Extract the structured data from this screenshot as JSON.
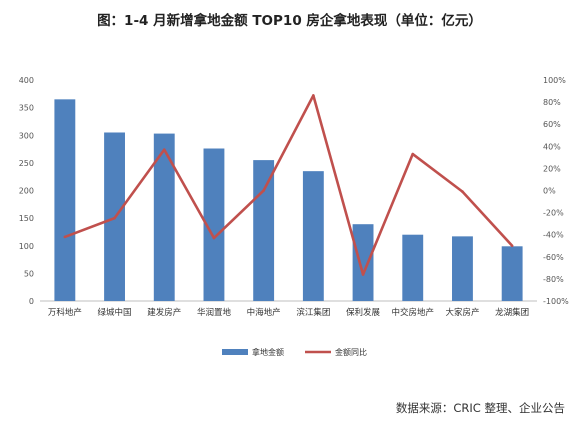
{
  "source_note": "数据来源：CRIC 整理、企业公告",
  "chart_data": {
    "type": "bar",
    "title": "图：1-4 月新增拿地金额 TOP10 房企拿地表现（单位：亿元）",
    "categories": [
      "万科地产",
      "绿城中国",
      "建发房产",
      "华润置地",
      "中海地产",
      "滨江集团",
      "保利发展",
      "中交房地产",
      "大家房产",
      "龙湖集团"
    ],
    "series": [
      {
        "name": "拿地金额",
        "type": "bar",
        "axis": "left",
        "color": "#4F81BD",
        "values": [
          365,
          305,
          303,
          276,
          255,
          235,
          139,
          120,
          117,
          99
        ]
      },
      {
        "name": "金额同比",
        "type": "line",
        "axis": "right",
        "color": "#C0504D",
        "values": [
          -42,
          -25,
          37,
          -43,
          0,
          86,
          -76,
          33,
          -1,
          -50
        ]
      }
    ],
    "y_left": {
      "min": 0,
      "max": 400,
      "step": 50,
      "unit": ""
    },
    "y_right": {
      "min": -100,
      "max": 100,
      "step": 20,
      "unit": "%"
    },
    "grid": false,
    "legend_position": "bottom"
  }
}
